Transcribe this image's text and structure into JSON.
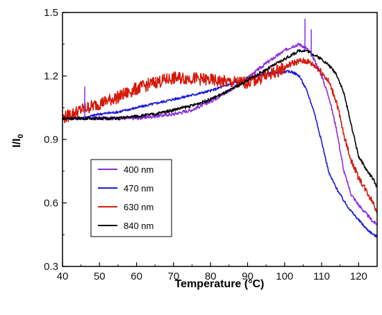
{
  "chart_data": {
    "type": "line",
    "xlabel": "Temperature (°C)",
    "ylabel": "I/I",
    "ylabel_sub": "0",
    "xlim": [
      40,
      125
    ],
    "ylim": [
      0.3,
      1.5
    ],
    "xticks": [
      40,
      50,
      60,
      70,
      80,
      90,
      100,
      110,
      120
    ],
    "yticks": [
      0.3,
      0.6,
      0.9,
      1.2,
      1.5
    ],
    "ytick_labels": [
      "0.3",
      "0.6",
      "0.9",
      "1.2",
      "1.5"
    ],
    "grid": false,
    "legend_position": "lower-left inside",
    "series": [
      {
        "name": "400 nm",
        "color": "#8a2be2",
        "x": [
          40,
          45,
          50,
          55,
          60,
          65,
          70,
          75,
          80,
          85,
          90,
          95,
          100,
          102,
          104,
          106,
          108,
          110,
          112,
          114,
          116,
          118,
          120,
          122,
          124,
          125
        ],
        "y": [
          1.0,
          1.0,
          1.0,
          1.0,
          1.0,
          1.01,
          1.02,
          1.04,
          1.08,
          1.13,
          1.19,
          1.26,
          1.32,
          1.34,
          1.35,
          1.33,
          1.28,
          1.2,
          1.1,
          0.95,
          0.75,
          0.64,
          0.59,
          0.55,
          0.51,
          0.5
        ]
      },
      {
        "name": "470 nm",
        "color": "#1a1adc",
        "x": [
          40,
          45,
          50,
          55,
          60,
          65,
          70,
          75,
          80,
          85,
          90,
          95,
          100,
          102,
          104,
          106,
          108,
          110,
          112,
          114,
          116,
          118,
          120,
          122,
          124,
          125
        ],
        "y": [
          1.0,
          1.0,
          1.02,
          1.03,
          1.05,
          1.07,
          1.09,
          1.11,
          1.13,
          1.16,
          1.19,
          1.21,
          1.22,
          1.22,
          1.2,
          1.13,
          1.03,
          0.89,
          0.74,
          0.67,
          0.61,
          0.56,
          0.52,
          0.48,
          0.45,
          0.44
        ]
      },
      {
        "name": "630 nm",
        "color": "#d41a0a",
        "x": [
          40,
          45,
          50,
          55,
          60,
          65,
          70,
          75,
          80,
          85,
          90,
          95,
          100,
          102,
          104,
          106,
          108,
          110,
          112,
          114,
          116,
          118,
          120,
          122,
          124,
          125
        ],
        "y": [
          1.0,
          1.04,
          1.07,
          1.1,
          1.14,
          1.17,
          1.19,
          1.19,
          1.18,
          1.17,
          1.17,
          1.2,
          1.24,
          1.26,
          1.27,
          1.27,
          1.25,
          1.22,
          1.17,
          1.08,
          0.92,
          0.8,
          0.72,
          0.66,
          0.6,
          0.56
        ]
      },
      {
        "name": "840 nm",
        "color": "#000000",
        "x": [
          40,
          45,
          50,
          55,
          60,
          65,
          70,
          75,
          80,
          85,
          90,
          95,
          100,
          102,
          104,
          106,
          108,
          110,
          112,
          114,
          116,
          118,
          120,
          122,
          124,
          125
        ],
        "y": [
          1.0,
          1.0,
          1.0,
          1.0,
          1.01,
          1.02,
          1.04,
          1.06,
          1.09,
          1.13,
          1.18,
          1.23,
          1.28,
          1.3,
          1.32,
          1.32,
          1.3,
          1.28,
          1.25,
          1.21,
          1.12,
          0.97,
          0.82,
          0.76,
          0.71,
          0.67
        ]
      }
    ],
    "spikes": [
      {
        "series": "400 nm",
        "x": 46,
        "y_low": 1.0,
        "y_high": 1.15
      },
      {
        "series": "400 nm",
        "x": 105.5,
        "y_low": 1.32,
        "y_high": 1.47
      },
      {
        "series": "400 nm",
        "x": 107.2,
        "y_low": 1.3,
        "y_high": 1.42
      }
    ]
  }
}
